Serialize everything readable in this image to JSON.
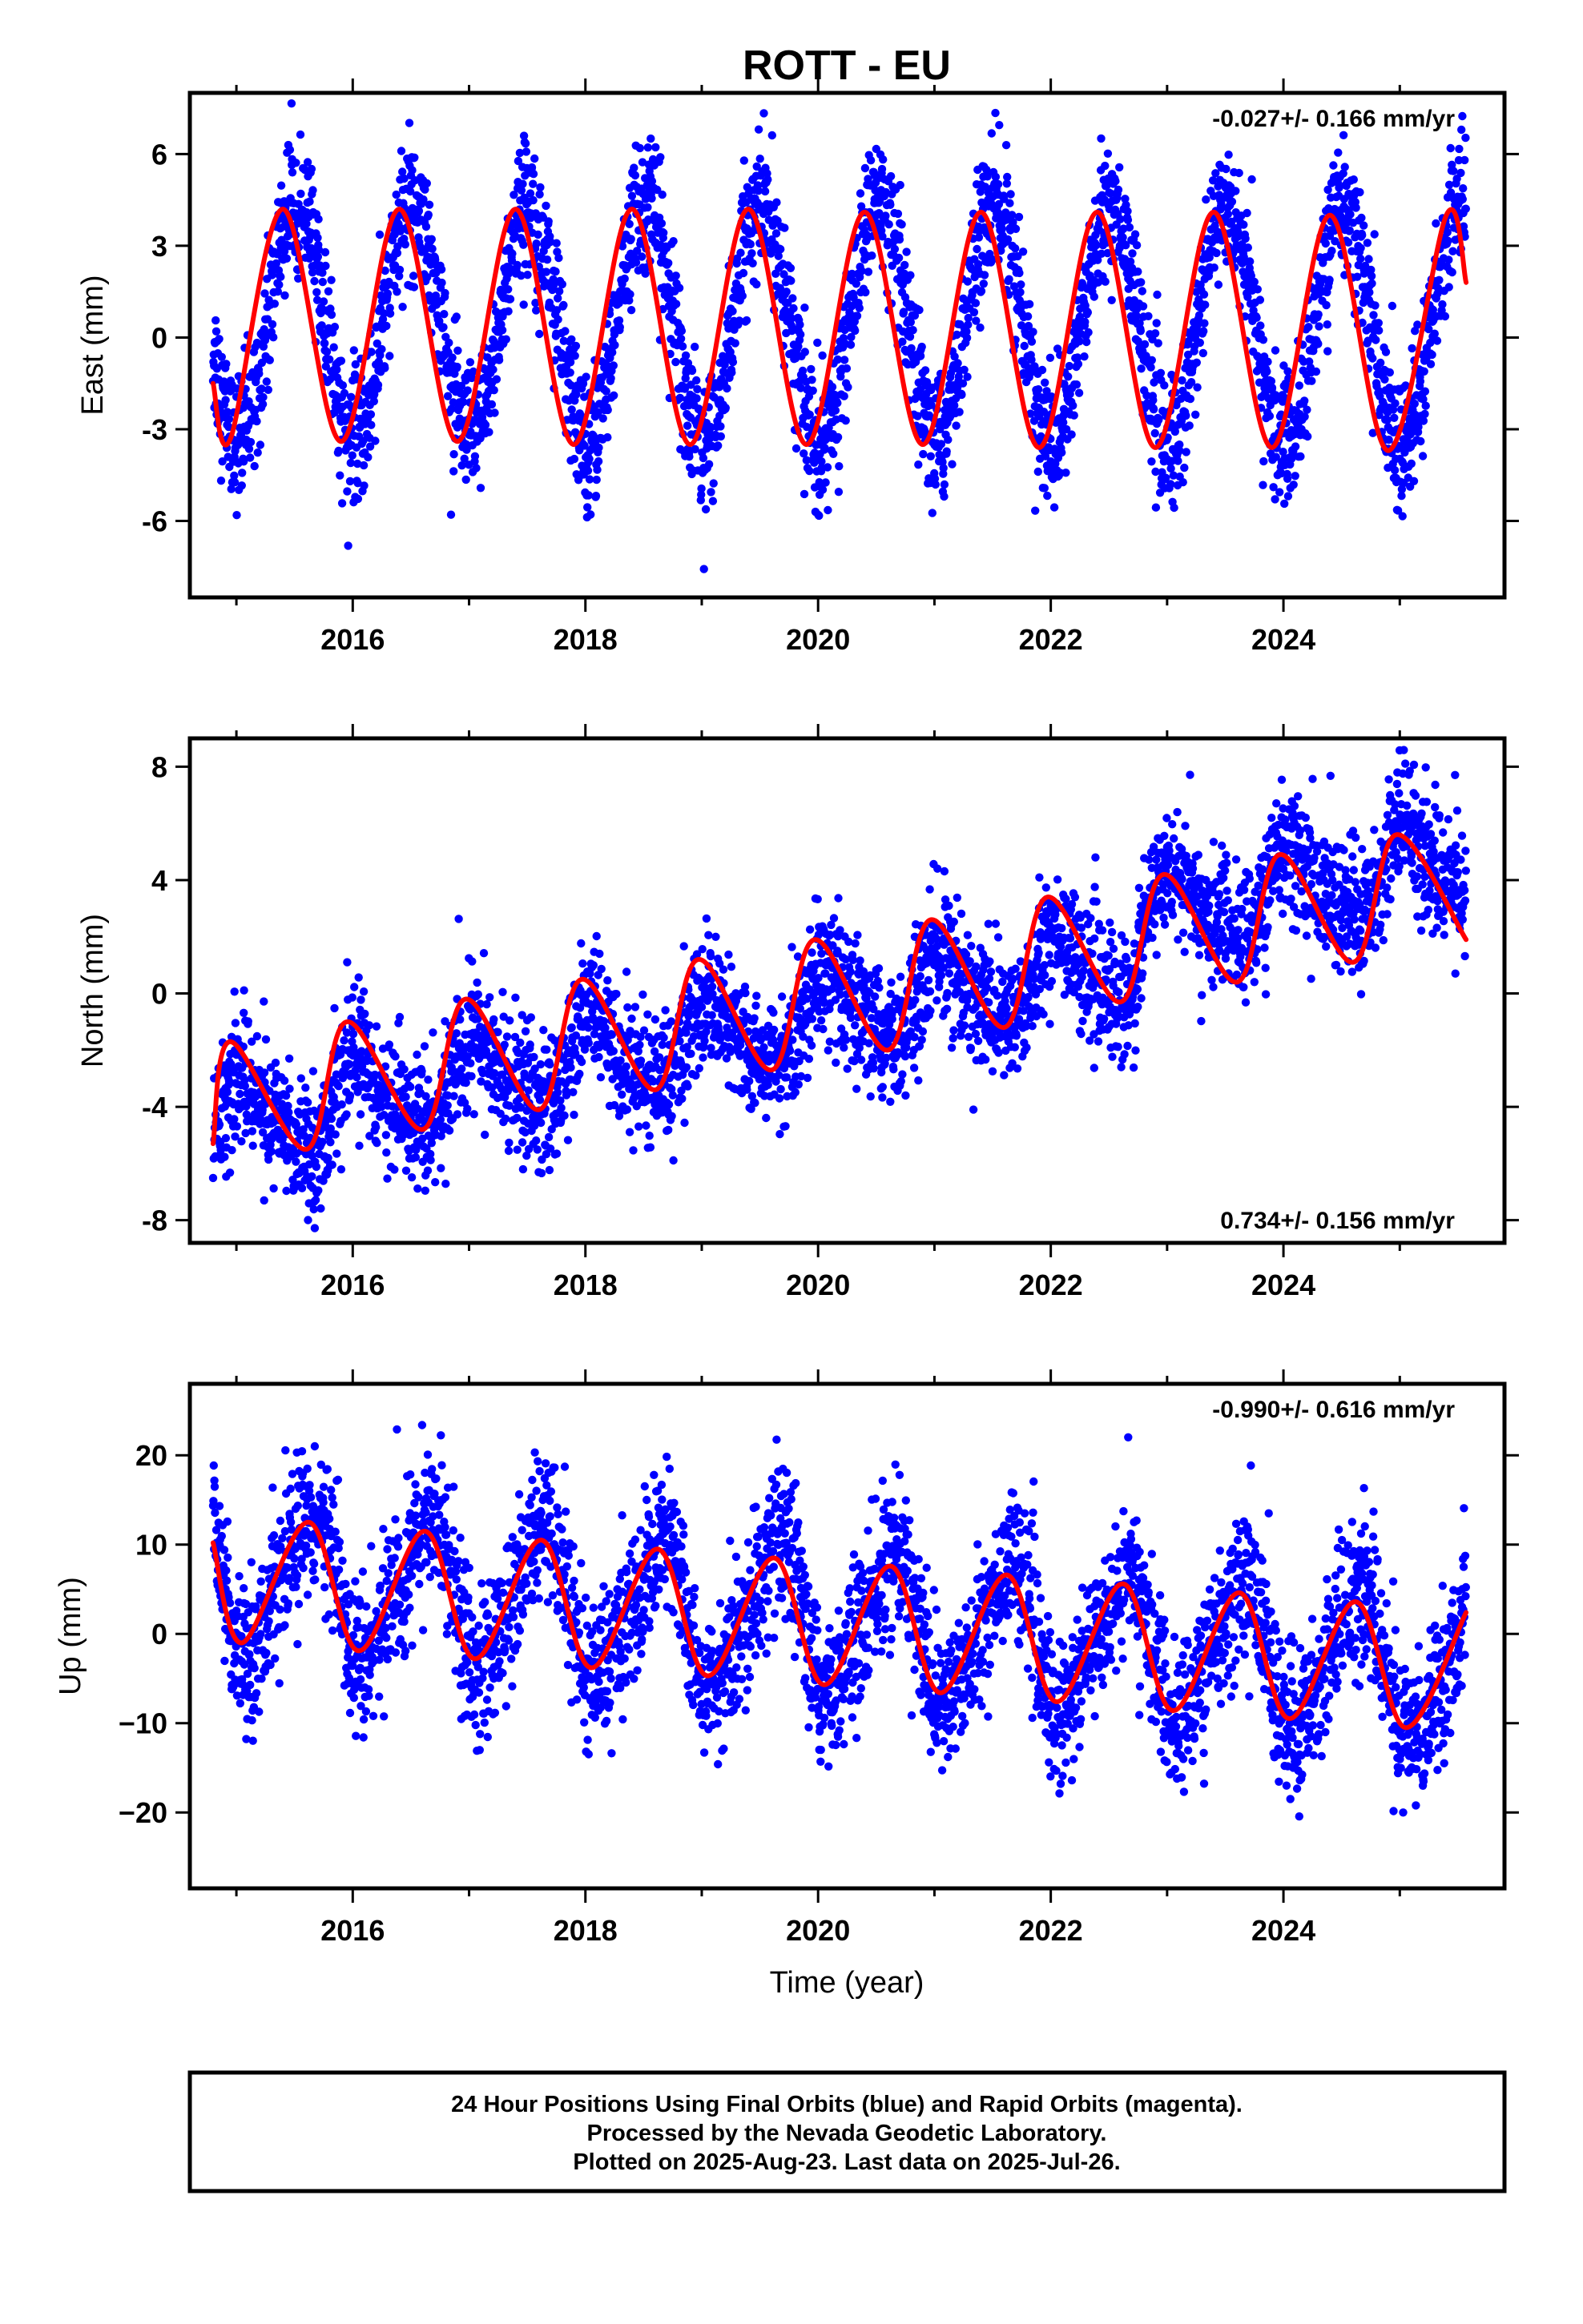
{
  "title": "ROTT - EU",
  "colors": {
    "points": "#0000ff",
    "fit": "#ff0000",
    "frame": "#000000"
  },
  "x_ticks": [
    2016,
    2018,
    2020,
    2022,
    2024
  ],
  "xlabel": "Time (year)",
  "chart_data": [
    {
      "type": "scatter",
      "component": "east",
      "ylabel": "East (mm)",
      "xlim": [
        2014.6,
        2025.9
      ],
      "ylim": [
        -8.5,
        8
      ],
      "y_ticks": [
        6,
        3,
        0,
        -3,
        -6
      ],
      "y_tick_labels": [
        "6",
        "3",
        "0",
        "-3",
        "-6"
      ],
      "rate_label": "-0.027+/- 0.166 mm/yr",
      "rate_position": "top-right",
      "series": [
        {
          "kind": "daily_positions",
          "x_range": [
            2014.8,
            2025.57
          ],
          "model": {
            "trend_mm_per_yr": -0.027,
            "offset": 0.45,
            "amp_cos": -3.9,
            "amp_sin": -0.35,
            "ref_year": 2020
          },
          "scatter_sd": 1.1
        },
        {
          "kind": "seasonal_fit",
          "x": [
            2014.8,
            2014.95,
            2015.4,
            2015.9,
            2016.4,
            2016.9,
            2017.4,
            2017.9,
            2018.4,
            2018.9,
            2019.4,
            2019.9,
            2020.4,
            2020.9,
            2021.4,
            2021.9,
            2022.4,
            2022.9,
            2023.4,
            2023.9,
            2024.4,
            2024.9,
            2025.4,
            2025.57
          ],
          "y": [
            -1.5,
            -3.3,
            4.2,
            -3.4,
            4.2,
            -3.4,
            4.2,
            -3.5,
            4.2,
            -3.5,
            4.2,
            -3.5,
            4.1,
            -3.5,
            4.1,
            -3.6,
            4.1,
            -3.6,
            4.1,
            -3.6,
            4.0,
            -3.7,
            4.0,
            1.8
          ]
        }
      ]
    },
    {
      "type": "scatter",
      "component": "north",
      "ylabel": "North (mm)",
      "xlim": [
        2014.6,
        2025.9
      ],
      "ylim": [
        -8.8,
        9
      ],
      "y_ticks": [
        8,
        4,
        0,
        -4,
        -8
      ],
      "y_tick_labels": [
        "8",
        "4",
        "0",
        "-4",
        "-8"
      ],
      "rate_label": "0.734+/- 0.156 mm/yr",
      "rate_position": "bottom-right",
      "series": [
        {
          "kind": "daily_positions",
          "x_range": [
            2014.8,
            2025.57
          ],
          "model": {
            "trend_mm_per_yr": 0.734,
            "offset": -0.9,
            "amp_cos": 1.2,
            "amp_sin": 0.6,
            "amp2_cos": 0.4,
            "amp2_sin": 0.0,
            "ref_year": 2020,
            "step_year": 2022.75,
            "step_mm": 1.5
          },
          "scatter_sd": 1.15
        },
        {
          "kind": "seasonal_fit",
          "x": [
            2014.8,
            2014.95,
            2015.6,
            2015.95,
            2016.6,
            2016.97,
            2017.6,
            2017.97,
            2018.6,
            2018.97,
            2019.6,
            2019.97,
            2020.6,
            2020.97,
            2021.6,
            2021.97,
            2022.6,
            2022.97,
            2023.6,
            2023.97,
            2024.6,
            2024.97,
            2025.57
          ],
          "y": [
            -5.3,
            -1.7,
            -5.5,
            -1.0,
            -4.8,
            -0.2,
            -4.1,
            0.5,
            -3.4,
            1.2,
            -2.7,
            1.9,
            -2.0,
            2.6,
            -1.2,
            3.4,
            -0.3,
            4.2,
            0.4,
            4.9,
            1.1,
            5.6,
            1.9
          ]
        }
      ]
    },
    {
      "type": "scatter",
      "component": "up",
      "ylabel": "Up (mm)",
      "xlim": [
        2014.6,
        2025.9
      ],
      "ylim": [
        -28.5,
        28
      ],
      "y_ticks": [
        20,
        10,
        0,
        -10,
        -20
      ],
      "y_tick_labels": [
        "20",
        "10",
        "0",
        "−10",
        "−20"
      ],
      "rate_label": "-0.990+/- 0.616 mm/yr",
      "rate_position": "top-right",
      "series": [
        {
          "kind": "daily_positions",
          "x_range": [
            2014.8,
            2025.57
          ],
          "model": {
            "trend_mm_per_yr": -0.99,
            "offset": 1.25,
            "amp_cos": -5.5,
            "amp_sin": -5.6,
            "amp2_cos": -1.5,
            "amp2_sin": 0.0,
            "ref_year": 2020
          },
          "scatter_sd": 4.2
        },
        {
          "kind": "seasonal_fit",
          "x": [
            2014.8,
            2015.05,
            2015.62,
            2016.05,
            2016.62,
            2017.05,
            2017.62,
            2018.05,
            2018.62,
            2019.05,
            2019.62,
            2020.05,
            2020.62,
            2021.05,
            2021.62,
            2022.05,
            2022.62,
            2023.05,
            2023.62,
            2024.05,
            2024.62,
            2025.05,
            2025.57
          ],
          "y": [
            10.2,
            -1.0,
            12.5,
            -1.9,
            11.5,
            -2.8,
            10.5,
            -3.8,
            9.5,
            -4.7,
            8.5,
            -5.7,
            7.6,
            -6.6,
            6.6,
            -7.6,
            5.6,
            -8.6,
            4.6,
            -9.5,
            3.6,
            -10.5,
            2.4
          ]
        }
      ]
    }
  ],
  "footer": {
    "line1": "24 Hour Positions Using Final Orbits (blue) and Rapid Orbits (magenta).",
    "line2": "Processed by the Nevada Geodetic Laboratory.",
    "line3": "Plotted on 2025-Aug-23. Last data on 2025-Jul-26."
  }
}
